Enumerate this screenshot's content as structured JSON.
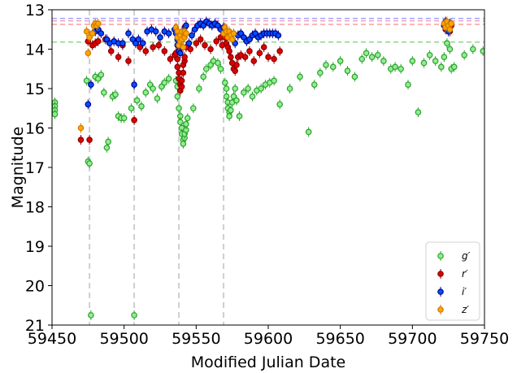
{
  "chart_data": {
    "type": "scatter",
    "xlabel": "Modified Julian Date",
    "ylabel": "Magnitude",
    "xlim": [
      59450,
      59750
    ],
    "ylim": [
      21,
      13
    ],
    "y_inverted": true,
    "xticks": [
      "59450",
      "59500",
      "59550",
      "59600",
      "59650",
      "59700",
      "59750"
    ],
    "yticks": [
      "13",
      "14",
      "15",
      "16",
      "17",
      "18",
      "19",
      "20",
      "21"
    ],
    "grid": false,
    "legend_position": "lower right",
    "vertical_lines": [
      59476,
      59507,
      59538,
      59569
    ],
    "horizontal_lines": [
      {
        "y": 13.22,
        "color": "#a3a3ff"
      },
      {
        "y": 13.28,
        "color": "#e8a0d0"
      },
      {
        "y": 13.37,
        "color": "#ff9a9a"
      },
      {
        "y": 13.82,
        "color": "#8fd68f"
      }
    ],
    "series": [
      {
        "name": "g′",
        "color": "#2ca02c",
        "face": "#90ee90",
        "points": [
          [
            59452,
            15.35
          ],
          [
            59452,
            15.45
          ],
          [
            59452,
            15.55
          ],
          [
            59452,
            15.65
          ],
          [
            59474,
            14.8
          ],
          [
            59475,
            16.85
          ],
          [
            59476,
            16.9
          ],
          [
            59477,
            20.75
          ],
          [
            59480,
            14.7
          ],
          [
            59482,
            14.75
          ],
          [
            59484,
            14.65
          ],
          [
            59486,
            15.1
          ],
          [
            59488,
            16.5
          ],
          [
            59489,
            16.35
          ],
          [
            59492,
            15.2
          ],
          [
            59494,
            15.15
          ],
          [
            59496,
            15.7
          ],
          [
            59498,
            15.75
          ],
          [
            59500,
            15.75
          ],
          [
            59505,
            15.5
          ],
          [
            59507,
            20.75
          ],
          [
            59509,
            15.3
          ],
          [
            59512,
            15.45
          ],
          [
            59515,
            15.1
          ],
          [
            59518,
            14.9
          ],
          [
            59520,
            15.0
          ],
          [
            59523,
            15.25
          ],
          [
            59526,
            14.95
          ],
          [
            59528,
            14.85
          ],
          [
            59531,
            14.75
          ],
          [
            59536,
            14.8
          ],
          [
            59537,
            14.95
          ],
          [
            59537,
            15.2
          ],
          [
            59538,
            15.5
          ],
          [
            59539,
            15.7
          ],
          [
            59539,
            15.85
          ],
          [
            59540,
            16.0
          ],
          [
            59540,
            16.15
          ],
          [
            59541,
            16.3
          ],
          [
            59541,
            16.4
          ],
          [
            59542,
            16.25
          ],
          [
            59542,
            16.15
          ],
          [
            59543,
            16.05
          ],
          [
            59543,
            15.9
          ],
          [
            59544,
            15.75
          ],
          [
            59548,
            15.5
          ],
          [
            59552,
            15.0
          ],
          [
            59555,
            14.7
          ],
          [
            59557,
            14.5
          ],
          [
            59560,
            14.4
          ],
          [
            59562,
            14.3
          ],
          [
            59565,
            14.35
          ],
          [
            59567,
            14.5
          ],
          [
            59570,
            14.85
          ],
          [
            59571,
            15.0
          ],
          [
            59571,
            15.2
          ],
          [
            59572,
            15.35
          ],
          [
            59572,
            15.5
          ],
          [
            59573,
            15.6
          ],
          [
            59573,
            15.7
          ],
          [
            59574,
            15.55
          ],
          [
            59575,
            15.35
          ],
          [
            59576,
            15.2
          ],
          [
            59577,
            15.0
          ],
          [
            59578,
            15.3
          ],
          [
            59580,
            15.7
          ],
          [
            59583,
            15.1
          ],
          [
            59586,
            15.0
          ],
          [
            59589,
            15.2
          ],
          [
            59592,
            15.05
          ],
          [
            59595,
            15.0
          ],
          [
            59598,
            14.9
          ],
          [
            59601,
            14.85
          ],
          [
            59604,
            14.8
          ],
          [
            59608,
            15.4
          ],
          [
            59615,
            15.0
          ],
          [
            59622,
            14.7
          ],
          [
            59628,
            16.1
          ],
          [
            59632,
            14.9
          ],
          [
            59636,
            14.6
          ],
          [
            59640,
            14.4
          ],
          [
            59645,
            14.45
          ],
          [
            59650,
            14.3
          ],
          [
            59655,
            14.55
          ],
          [
            59660,
            14.7
          ],
          [
            59665,
            14.25
          ],
          [
            59668,
            14.1
          ],
          [
            59672,
            14.2
          ],
          [
            59676,
            14.15
          ],
          [
            59680,
            14.3
          ],
          [
            59685,
            14.5
          ],
          [
            59688,
            14.45
          ],
          [
            59692,
            14.5
          ],
          [
            59697,
            14.9
          ],
          [
            59700,
            14.3
          ],
          [
            59704,
            15.6
          ],
          [
            59708,
            14.35
          ],
          [
            59712,
            14.15
          ],
          [
            59716,
            14.3
          ],
          [
            59720,
            14.45
          ],
          [
            59722,
            14.2
          ],
          [
            59724,
            13.85
          ],
          [
            59726,
            14.0
          ],
          [
            59727,
            14.5
          ],
          [
            59729,
            14.45
          ],
          [
            59736,
            14.15
          ],
          [
            59742,
            14.0
          ],
          [
            59749,
            14.05
          ]
        ]
      },
      {
        "name": "r′",
        "color": "#8b0000",
        "face": "#e00000",
        "points": [
          [
            59470,
            16.3
          ],
          [
            59475,
            13.8
          ],
          [
            59476,
            16.3
          ],
          [
            59478,
            13.9
          ],
          [
            59480,
            13.85
          ],
          [
            59482,
            13.8
          ],
          [
            59487,
            13.75
          ],
          [
            59491,
            14.05
          ],
          [
            59496,
            14.2
          ],
          [
            59499,
            13.9
          ],
          [
            59503,
            14.3
          ],
          [
            59507,
            15.8
          ],
          [
            59511,
            13.95
          ],
          [
            59515,
            14.05
          ],
          [
            59520,
            13.95
          ],
          [
            59524,
            13.9
          ],
          [
            59528,
            14.05
          ],
          [
            59532,
            14.25
          ],
          [
            59535,
            14.15
          ],
          [
            59536,
            14.1
          ],
          [
            59537,
            14.25
          ],
          [
            59537,
            14.45
          ],
          [
            59538,
            14.6
          ],
          [
            59538,
            14.75
          ],
          [
            59539,
            14.9
          ],
          [
            59539,
            15.05
          ],
          [
            59540,
            14.95
          ],
          [
            59540,
            14.8
          ],
          [
            59541,
            14.6
          ],
          [
            59541,
            14.4
          ],
          [
            59542,
            14.3
          ],
          [
            59542,
            14.2
          ],
          [
            59543,
            13.95
          ],
          [
            59546,
            14.0
          ],
          [
            59550,
            13.85
          ],
          [
            59553,
            13.75
          ],
          [
            59556,
            13.9
          ],
          [
            59560,
            14.0
          ],
          [
            59564,
            13.8
          ],
          [
            59567,
            13.7
          ],
          [
            59568,
            13.9
          ],
          [
            59569,
            13.6
          ],
          [
            59570,
            13.7
          ],
          [
            59571,
            13.85
          ],
          [
            59572,
            13.95
          ],
          [
            59573,
            14.05
          ],
          [
            59574,
            14.2
          ],
          [
            59575,
            14.35
          ],
          [
            59576,
            14.5
          ],
          [
            59577,
            14.55
          ],
          [
            59578,
            14.4
          ],
          [
            59579,
            14.2
          ],
          [
            59581,
            14.15
          ],
          [
            59584,
            14.2
          ],
          [
            59587,
            14.05
          ],
          [
            59590,
            14.3
          ],
          [
            59594,
            14.1
          ],
          [
            59597,
            13.95
          ],
          [
            59600,
            14.2
          ],
          [
            59604,
            14.25
          ],
          [
            59608,
            14.05
          ],
          [
            59722,
            13.4
          ],
          [
            59723,
            13.5
          ],
          [
            59724,
            13.35
          ],
          [
            59725,
            13.45
          ],
          [
            59726,
            13.55
          ],
          [
            59727,
            13.4
          ]
        ]
      },
      {
        "name": "i′",
        "color": "#00008b",
        "face": "#0050ff",
        "points": [
          [
            59475,
            15.4
          ],
          [
            59477,
            14.9
          ],
          [
            59480,
            13.55
          ],
          [
            59482,
            13.5
          ],
          [
            59484,
            13.6
          ],
          [
            59488,
            13.75
          ],
          [
            59490,
            13.85
          ],
          [
            59493,
            13.8
          ],
          [
            59496,
            13.85
          ],
          [
            59499,
            13.85
          ],
          [
            59503,
            13.6
          ],
          [
            59506,
            13.75
          ],
          [
            59508,
            13.85
          ],
          [
            59510,
            13.75
          ],
          [
            59513,
            13.85
          ],
          [
            59516,
            13.55
          ],
          [
            59519,
            13.5
          ],
          [
            59522,
            13.55
          ],
          [
            59525,
            13.7
          ],
          [
            59528,
            13.55
          ],
          [
            59531,
            13.6
          ],
          [
            59535,
            13.5
          ],
          [
            59536,
            13.6
          ],
          [
            59537,
            13.75
          ],
          [
            59537,
            13.9
          ],
          [
            59538,
            14.05
          ],
          [
            59539,
            14.1
          ],
          [
            59540,
            13.95
          ],
          [
            59540,
            13.75
          ],
          [
            59541,
            13.55
          ],
          [
            59542,
            13.45
          ],
          [
            59543,
            13.4
          ],
          [
            59545,
            13.85
          ],
          [
            59547,
            13.65
          ],
          [
            59549,
            13.5
          ],
          [
            59551,
            13.4
          ],
          [
            59553,
            13.35
          ],
          [
            59555,
            13.4
          ],
          [
            59557,
            13.3
          ],
          [
            59559,
            13.35
          ],
          [
            59561,
            13.4
          ],
          [
            59563,
            13.35
          ],
          [
            59565,
            13.4
          ],
          [
            59567,
            13.5
          ],
          [
            59569,
            13.45
          ],
          [
            59571,
            13.55
          ],
          [
            59573,
            13.65
          ],
          [
            59575,
            13.75
          ],
          [
            59577,
            13.85
          ],
          [
            59579,
            13.65
          ],
          [
            59581,
            13.6
          ],
          [
            59583,
            13.7
          ],
          [
            59585,
            13.8
          ],
          [
            59587,
            13.75
          ],
          [
            59589,
            13.65
          ],
          [
            59591,
            13.6
          ],
          [
            59593,
            13.7
          ],
          [
            59595,
            13.65
          ],
          [
            59597,
            13.6
          ],
          [
            59599,
            13.6
          ],
          [
            59601,
            13.6
          ],
          [
            59603,
            13.6
          ],
          [
            59605,
            13.6
          ],
          [
            59607,
            13.65
          ],
          [
            59507,
            14.9
          ],
          [
            59722,
            13.4
          ],
          [
            59723,
            13.3
          ],
          [
            59724,
            13.45
          ],
          [
            59725,
            13.55
          ],
          [
            59726,
            13.35
          ]
        ]
      },
      {
        "name": "z′",
        "color": "#cc7a00",
        "face": "#ffa500",
        "points": [
          [
            59470,
            16.0
          ],
          [
            59474,
            13.55
          ],
          [
            59475,
            14.1
          ],
          [
            59476,
            13.7
          ],
          [
            59478,
            13.6
          ],
          [
            59479,
            13.4
          ],
          [
            59480,
            13.35
          ],
          [
            59481,
            13.4
          ],
          [
            59482,
            13.35
          ],
          [
            59536,
            13.45
          ],
          [
            59537,
            13.55
          ],
          [
            59537,
            13.7
          ],
          [
            59538,
            13.9
          ],
          [
            59539,
            13.8
          ],
          [
            59539,
            13.65
          ],
          [
            59540,
            13.55
          ],
          [
            59540,
            13.75
          ],
          [
            59541,
            13.95
          ],
          [
            59542,
            13.7
          ],
          [
            59542,
            13.55
          ],
          [
            59543,
            13.6
          ],
          [
            59569,
            13.6
          ],
          [
            59570,
            13.45
          ],
          [
            59571,
            13.55
          ],
          [
            59572,
            13.7
          ],
          [
            59573,
            13.55
          ],
          [
            59574,
            13.65
          ],
          [
            59575,
            13.75
          ],
          [
            59576,
            13.6
          ],
          [
            59722,
            13.35
          ],
          [
            59723,
            13.45
          ],
          [
            59724,
            13.3
          ],
          [
            59725,
            13.4
          ],
          [
            59726,
            13.5
          ],
          [
            59727,
            13.35
          ]
        ]
      }
    ]
  }
}
